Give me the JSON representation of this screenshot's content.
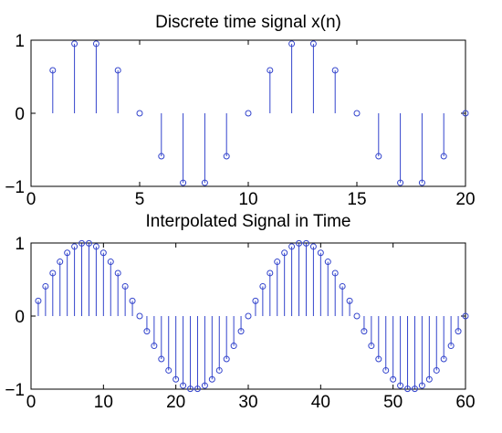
{
  "colors": {
    "stem": "#3344cc",
    "axes": "#000000",
    "background": "#ffffff"
  },
  "chart_data": [
    {
      "type": "stem",
      "title": "Discrete time signal x(n)",
      "xlim": [
        0,
        20
      ],
      "ylim": [
        -1,
        1
      ],
      "xticks": [
        0,
        5,
        10,
        15,
        20
      ],
      "yticks": [
        -1,
        0,
        1
      ],
      "grid": false,
      "series": [
        {
          "x": [
            1,
            2,
            3,
            4,
            5,
            6,
            7,
            8,
            9,
            10,
            11,
            12,
            13,
            14,
            15,
            16,
            17,
            18,
            19,
            20
          ],
          "values": [
            0.588,
            0.951,
            0.951,
            0.588,
            0.0,
            -0.588,
            -0.951,
            -0.951,
            -0.588,
            0.0,
            0.588,
            0.951,
            0.951,
            0.588,
            0.0,
            -0.588,
            -0.951,
            -0.951,
            -0.588,
            0.0
          ]
        }
      ]
    },
    {
      "type": "stem",
      "title": "Interpolated Signal in Time",
      "xlim": [
        0,
        60
      ],
      "ylim": [
        -1,
        1
      ],
      "xticks": [
        0,
        10,
        20,
        30,
        40,
        50,
        60
      ],
      "yticks": [
        -1,
        0,
        1
      ],
      "grid": false,
      "series": [
        {
          "x": [
            1,
            2,
            3,
            4,
            5,
            6,
            7,
            8,
            9,
            10,
            11,
            12,
            13,
            14,
            15,
            16,
            17,
            18,
            19,
            20,
            21,
            22,
            23,
            24,
            25,
            26,
            27,
            28,
            29,
            30,
            31,
            32,
            33,
            34,
            35,
            36,
            37,
            38,
            39,
            40,
            41,
            42,
            43,
            44,
            45,
            46,
            47,
            48,
            49,
            50,
            51,
            52,
            53,
            54,
            55,
            56,
            57,
            58,
            59,
            60
          ],
          "values": [
            0.208,
            0.407,
            0.588,
            0.743,
            0.866,
            0.951,
            0.995,
            0.995,
            0.951,
            0.866,
            0.743,
            0.588,
            0.407,
            0.208,
            0.0,
            -0.208,
            -0.407,
            -0.588,
            -0.743,
            -0.866,
            -0.951,
            -0.995,
            -0.995,
            -0.951,
            -0.866,
            -0.743,
            -0.588,
            -0.407,
            -0.208,
            0.0,
            0.208,
            0.407,
            0.588,
            0.743,
            0.866,
            0.951,
            0.995,
            0.995,
            0.951,
            0.866,
            0.743,
            0.588,
            0.407,
            0.208,
            0.0,
            -0.208,
            -0.407,
            -0.588,
            -0.743,
            -0.866,
            -0.951,
            -0.995,
            -0.995,
            -0.951,
            -0.866,
            -0.743,
            -0.588,
            -0.407,
            -0.208,
            0.0
          ]
        }
      ]
    }
  ]
}
